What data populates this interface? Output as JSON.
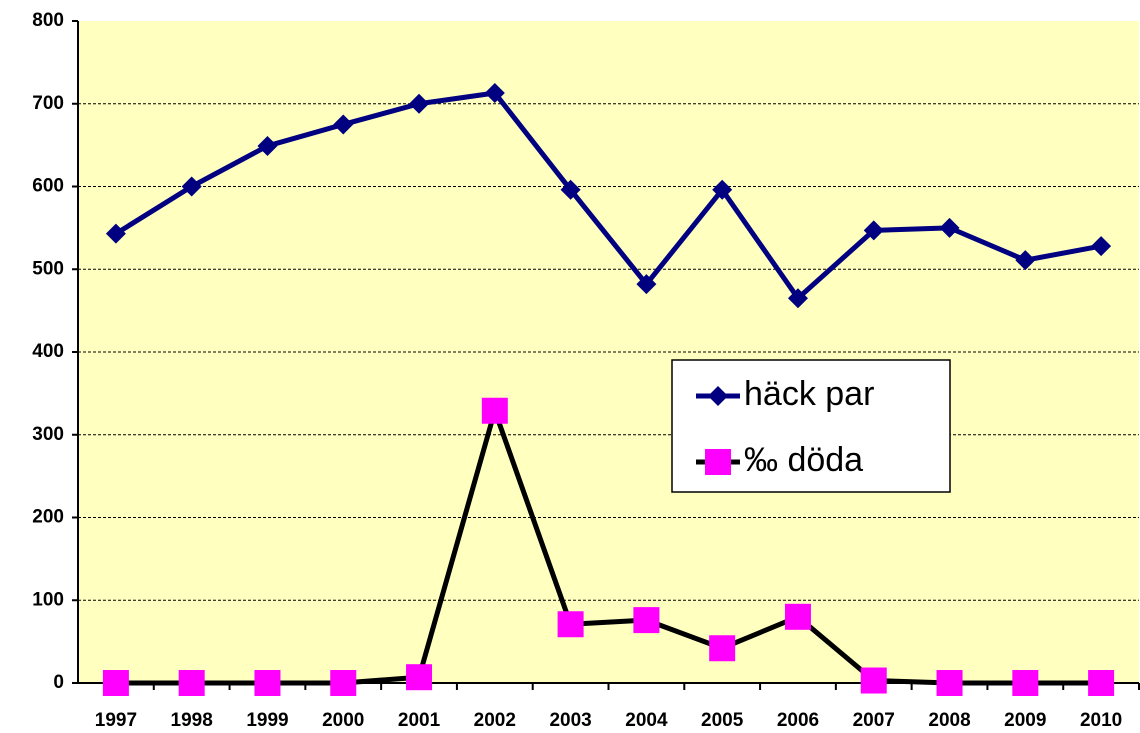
{
  "chart_data": {
    "type": "line",
    "categories": [
      "1997",
      "1998",
      "1999",
      "2000",
      "2001",
      "2002",
      "2003",
      "2004",
      "2005",
      "2006",
      "2007",
      "2008",
      "2009",
      "2010"
    ],
    "series": [
      {
        "name": "häck par",
        "color": "#000080",
        "marker": "diamond",
        "marker_color": "#000080",
        "values": [
          543,
          600,
          649,
          675,
          700,
          713,
          596,
          482,
          596,
          465,
          547,
          550,
          511,
          528
        ]
      },
      {
        "name": "‰ döda",
        "color": "#000000",
        "marker": "square",
        "marker_color": "#ff00ff",
        "values": [
          0,
          0,
          0,
          0,
          7,
          329,
          71,
          76,
          42,
          80,
          3,
          0,
          0,
          0
        ]
      }
    ],
    "ylim": [
      0,
      800
    ],
    "yticks": [
      0,
      100,
      200,
      300,
      400,
      500,
      600,
      700,
      800
    ],
    "grid": true,
    "background": "#ffffc0",
    "legend": "right"
  }
}
